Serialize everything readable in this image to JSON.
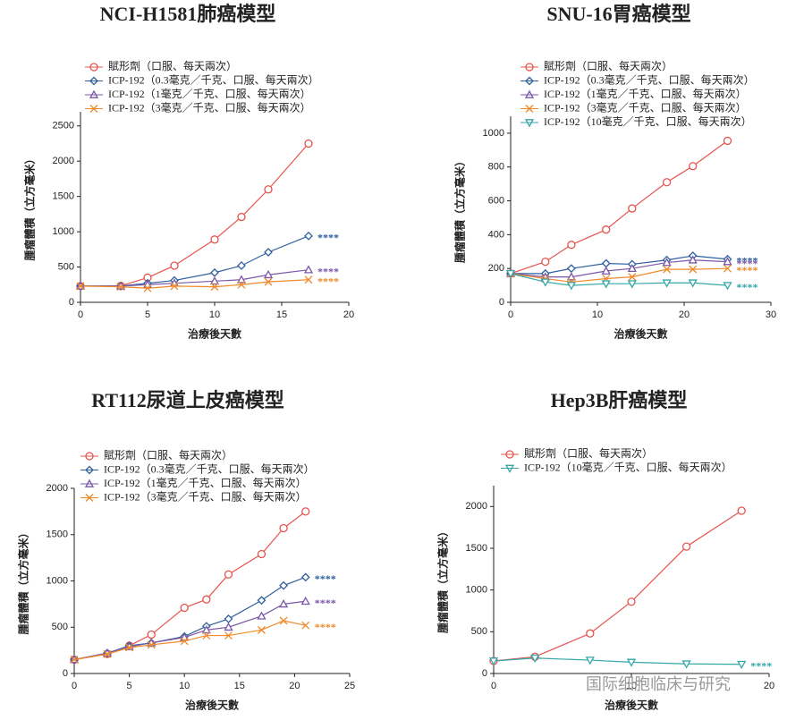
{
  "chart_data": [
    {
      "type": "line",
      "title": "NCI-H1581肺癌模型",
      "x_label": "治療後天數",
      "y_label": "腫瘤體積（立方毫米）",
      "x": [
        0,
        3,
        5,
        7,
        10,
        12,
        14,
        17
      ],
      "xlim": [
        0,
        20
      ],
      "xticks": [
        0,
        5,
        10,
        15,
        20
      ],
      "ylim": [
        0,
        2700
      ],
      "yticks": [
        0,
        500,
        1000,
        1500,
        2000,
        2500
      ],
      "series": [
        {
          "name": "賦形劑（口服、每天兩次）",
          "color": "#e5544e",
          "marker": "circle",
          "values": [
            230,
            232,
            350,
            520,
            890,
            1210,
            1600,
            2250
          ]
        },
        {
          "name": "ICP-192（0.3毫克／千克、口服、每天兩次）",
          "color": "#2f5f9e",
          "marker": "diamond",
          "annotation": "****",
          "values": [
            230,
            230,
            270,
            310,
            420,
            520,
            710,
            940
          ]
        },
        {
          "name": "ICP-192（1毫克／千克、口服、每天兩次）",
          "color": "#7b57a8",
          "marker": "triangle-up",
          "annotation": "****",
          "values": [
            230,
            230,
            250,
            270,
            300,
            320,
            390,
            460
          ]
        },
        {
          "name": "ICP-192（3毫克／千克、口服、每天兩次）",
          "color": "#f08a2a",
          "marker": "x",
          "annotation": "****",
          "values": [
            230,
            220,
            200,
            230,
            220,
            250,
            290,
            320
          ]
        }
      ]
    },
    {
      "type": "line",
      "title": "SNU-16胃癌模型",
      "x_label": "治療後天數",
      "y_label": "腫瘤體積（立方毫米）",
      "x": [
        0,
        4,
        7,
        11,
        14,
        18,
        21,
        25
      ],
      "xlim": [
        0,
        30
      ],
      "xticks": [
        0,
        10,
        20,
        30
      ],
      "ylim": [
        0,
        1100
      ],
      "yticks": [
        0,
        200,
        400,
        600,
        800,
        1000
      ],
      "series": [
        {
          "name": "賦形劑（口服、每天兩次）",
          "color": "#e5544e",
          "marker": "circle",
          "values": [
            170,
            240,
            340,
            430,
            555,
            710,
            805,
            955
          ]
        },
        {
          "name": "ICP-192（0.3毫克／千克、口服、每天兩次）",
          "color": "#2f5f9e",
          "marker": "diamond",
          "annotation": "****",
          "values": [
            170,
            170,
            200,
            230,
            225,
            250,
            275,
            255
          ]
        },
        {
          "name": "ICP-192（1毫克／千克、口服、每天兩次）",
          "color": "#7b57a8",
          "marker": "triangle-up",
          "annotation": "****",
          "values": [
            170,
            150,
            150,
            185,
            200,
            235,
            250,
            240
          ]
        },
        {
          "name": "ICP-192（3毫克／千克、口服、每天兩次）",
          "color": "#f08a2a",
          "marker": "x",
          "annotation": "****",
          "values": [
            170,
            140,
            120,
            140,
            150,
            195,
            195,
            200
          ]
        },
        {
          "name": "ICP-192（10毫克／千克、口服、每天兩次）",
          "color": "#35a7a8",
          "marker": "triangle-down",
          "annotation": "****",
          "values": [
            170,
            120,
            100,
            110,
            110,
            115,
            115,
            100
          ]
        }
      ]
    },
    {
      "type": "line",
      "title": "RT112尿道上皮癌模型",
      "x_label": "治療後天數",
      "y_label": "腫瘤體積（立方毫米）",
      "x": [
        0,
        3,
        5,
        7,
        10,
        12,
        14,
        17,
        19,
        21
      ],
      "xlim": [
        0,
        25
      ],
      "xticks": [
        0,
        5,
        10,
        15,
        20,
        25
      ],
      "ylim": [
        0,
        2000
      ],
      "yticks": [
        0,
        500,
        1000,
        1500,
        2000
      ],
      "series": [
        {
          "name": "賦形劑（口服、每天兩次）",
          "color": "#e5544e",
          "marker": "circle",
          "values": [
            150,
            210,
            300,
            420,
            710,
            800,
            1070,
            1290,
            1570,
            1750
          ]
        },
        {
          "name": "ICP-192（0.3毫克／千克、口服、每天兩次）",
          "color": "#2f5f9e",
          "marker": "diamond",
          "annotation": "****",
          "values": [
            150,
            220,
            300,
            330,
            400,
            510,
            590,
            790,
            950,
            1040
          ]
        },
        {
          "name": "ICP-192（1毫克／千克、口服、每天兩次）",
          "color": "#7b57a8",
          "marker": "triangle-up",
          "annotation": "****",
          "values": [
            150,
            220,
            290,
            330,
            390,
            470,
            500,
            620,
            750,
            780
          ]
        },
        {
          "name": "ICP-192（3毫克／千克、口服、每天兩次）",
          "color": "#f08a2a",
          "marker": "x",
          "annotation": "****",
          "values": [
            150,
            210,
            280,
            310,
            350,
            410,
            410,
            470,
            570,
            520
          ]
        }
      ]
    },
    {
      "type": "line",
      "title": "Hep3B肝癌模型",
      "x_label": "治療後天數",
      "y_label": "腫瘤體積（立方毫米）",
      "x": [
        0,
        3,
        7,
        10,
        14,
        18
      ],
      "xlim": [
        0,
        20
      ],
      "xticks": [
        0,
        10,
        20
      ],
      "ylim": [
        0,
        2250
      ],
      "yticks": [
        0,
        500,
        1000,
        1500,
        2000
      ],
      "series": [
        {
          "name": "賦形劑（口服、每天兩次）",
          "color": "#e5544e",
          "marker": "circle",
          "values": [
            150,
            200,
            480,
            860,
            1520,
            1950
          ]
        },
        {
          "name": "ICP-192（10毫克／千克、口服、每天兩次）",
          "color": "#35a7a8",
          "marker": "triangle-down",
          "annotation": "****",
          "values": [
            150,
            185,
            160,
            135,
            115,
            110
          ]
        }
      ],
      "watermark": "国际细胞临床与研究"
    }
  ]
}
